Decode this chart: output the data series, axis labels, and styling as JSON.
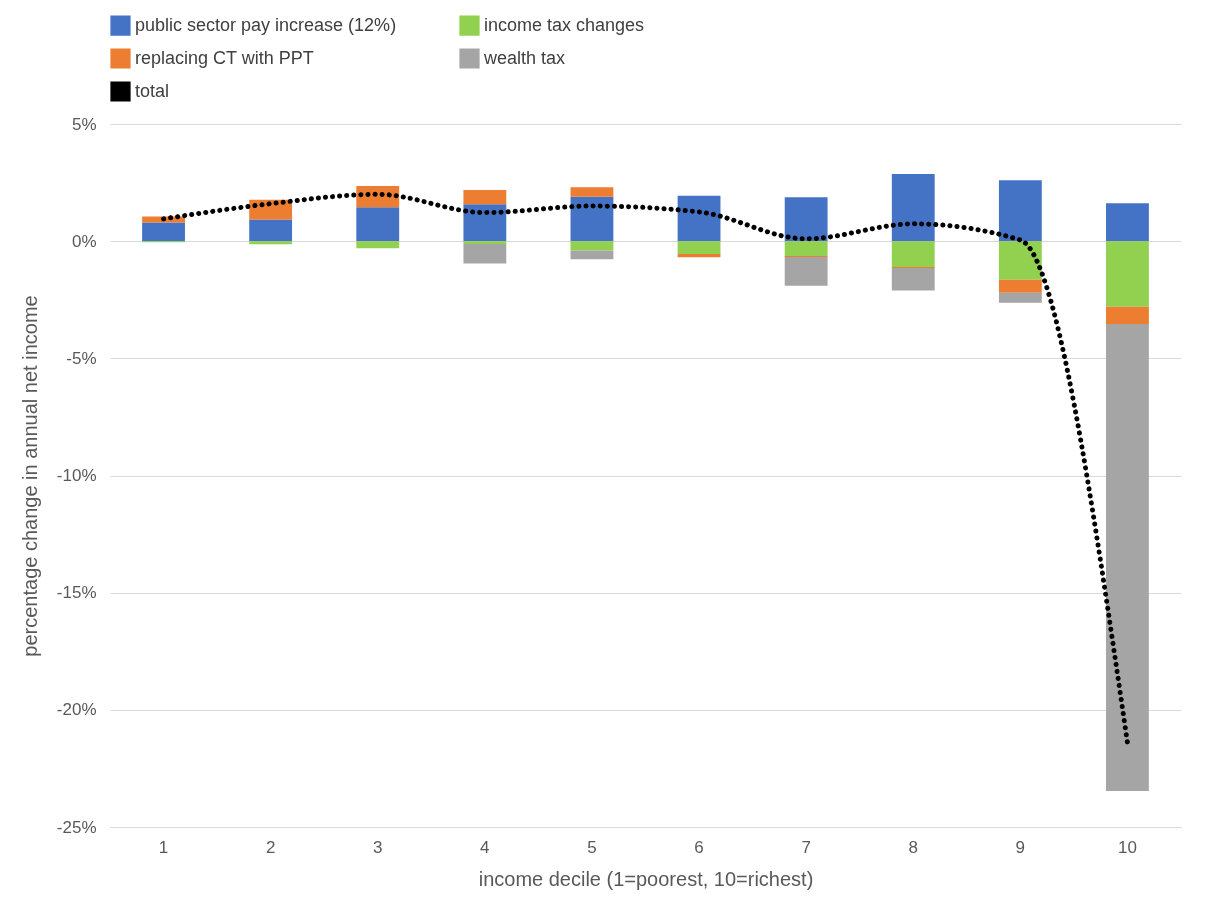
{
  "chart_data": {
    "type": "bar",
    "stacked": true,
    "xlabel": "income decile (1=poorest, 10=richest)",
    "ylabel": "percentage change in annual net income",
    "categories": [
      "1",
      "2",
      "3",
      "4",
      "5",
      "6",
      "7",
      "8",
      "9",
      "10"
    ],
    "series": [
      {
        "name": "public sector pay increase (12%)",
        "color": "#4472c4",
        "values": [
          0.8,
          0.92,
          1.45,
          1.58,
          1.9,
          1.94,
          1.87,
          2.87,
          2.6,
          1.62
        ]
      },
      {
        "name": "income tax changes",
        "color": "#92d050",
        "values": [
          -0.05,
          -0.13,
          -0.3,
          -0.12,
          -0.4,
          -0.55,
          -0.63,
          -1.1,
          -1.65,
          -2.8
        ]
      },
      {
        "name": "replacing CT with PPT",
        "color": "#ed7d31",
        "values": [
          0.25,
          0.85,
          0.9,
          0.6,
          0.4,
          -0.14,
          -0.05,
          -0.05,
          -0.55,
          -0.73
        ]
      },
      {
        "name": "wealth tax",
        "color": "#a5a5a5",
        "values": [
          0,
          0,
          0,
          -0.83,
          -0.37,
          null,
          -1.22,
          -0.95,
          -0.43,
          -19.93
        ]
      },
      {
        "name": "total",
        "type": "line",
        "color": "#000000",
        "line_style": "dotted",
        "values": [
          0.95,
          1.6,
          2.0,
          1.22,
          1.5,
          1.25,
          0.1,
          0.74,
          0.05,
          -21.4
        ]
      }
    ],
    "ylim": [
      -25,
      5
    ],
    "yticks": [
      {
        "value": -25,
        "label": "-25%"
      },
      {
        "value": -20,
        "label": "-20%"
      },
      {
        "value": -15,
        "label": "-15%"
      },
      {
        "value": -10,
        "label": "-10%"
      },
      {
        "value": -5,
        "label": "-5%"
      },
      {
        "value": 0,
        "label": "0%"
      },
      {
        "value": 5,
        "label": "5%"
      }
    ],
    "grid": "y",
    "legend": "top"
  }
}
